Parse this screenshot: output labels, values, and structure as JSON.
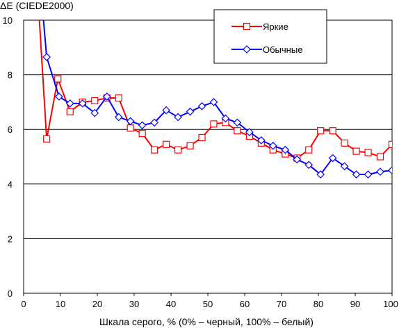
{
  "chart_data": {
    "type": "line",
    "title": "",
    "ylabel": "ΔE (CIEDE2000)",
    "xlabel": "Шкала серого, % (0% – черный, 100% – белый)",
    "xlim": [
      0,
      100
    ],
    "ylim": [
      0,
      10
    ],
    "xticks": [
      "0",
      "10",
      "20",
      "30",
      "40",
      "50",
      "60",
      "70",
      "80",
      "90",
      "100"
    ],
    "yticks": [
      "0",
      "2",
      "4",
      "6",
      "8",
      "10"
    ],
    "grid": "horizontal",
    "legend_position": "top-right",
    "series": [
      {
        "name": "Яркие",
        "color": "#ff0000",
        "marker": "square",
        "points": [
          [
            4,
            10.6
          ],
          [
            6.25,
            5.65
          ],
          [
            9.3,
            7.85
          ],
          [
            12.6,
            6.65
          ],
          [
            16,
            7.0
          ],
          [
            19.3,
            7.05
          ],
          [
            22.6,
            7.15
          ],
          [
            25.8,
            7.15
          ],
          [
            29,
            6.05
          ],
          [
            32.2,
            5.85
          ],
          [
            35.5,
            5.25
          ],
          [
            38.7,
            5.45
          ],
          [
            41.9,
            5.25
          ],
          [
            45.2,
            5.4
          ],
          [
            48.4,
            5.7
          ],
          [
            51.6,
            6.2
          ],
          [
            54.8,
            6.25
          ],
          [
            58,
            5.95
          ],
          [
            61.3,
            5.75
          ],
          [
            64.5,
            5.5
          ],
          [
            67.7,
            5.25
          ],
          [
            71,
            5.1
          ],
          [
            74.2,
            4.95
          ],
          [
            77.4,
            5.25
          ],
          [
            80.6,
            5.95
          ],
          [
            83.9,
            5.95
          ],
          [
            87.1,
            5.5
          ],
          [
            90.3,
            5.2
          ],
          [
            93.5,
            5.15
          ],
          [
            96.8,
            5.0
          ],
          [
            100,
            5.45
          ]
        ]
      },
      {
        "name": "Обычные",
        "color": "#0000ff",
        "marker": "diamond",
        "points": [
          [
            5,
            10.6
          ],
          [
            6.25,
            8.65
          ],
          [
            9.6,
            7.2
          ],
          [
            12.6,
            6.95
          ],
          [
            16,
            6.95
          ],
          [
            19.3,
            6.6
          ],
          [
            22.6,
            7.2
          ],
          [
            25.8,
            6.45
          ],
          [
            29,
            6.3
          ],
          [
            32.2,
            6.15
          ],
          [
            35.5,
            6.25
          ],
          [
            38.7,
            6.7
          ],
          [
            41.9,
            6.45
          ],
          [
            45.2,
            6.65
          ],
          [
            48.4,
            6.85
          ],
          [
            51.6,
            7.0
          ],
          [
            54.8,
            6.4
          ],
          [
            58,
            6.25
          ],
          [
            61.3,
            5.9
          ],
          [
            64.5,
            5.6
          ],
          [
            67.7,
            5.4
          ],
          [
            71,
            5.25
          ],
          [
            74.2,
            4.9
          ],
          [
            77.4,
            4.7
          ],
          [
            80.6,
            4.35
          ],
          [
            83.9,
            4.95
          ],
          [
            87.1,
            4.65
          ],
          [
            90.3,
            4.35
          ],
          [
            93.5,
            4.35
          ],
          [
            96.8,
            4.45
          ],
          [
            100,
            4.5
          ]
        ]
      }
    ]
  }
}
